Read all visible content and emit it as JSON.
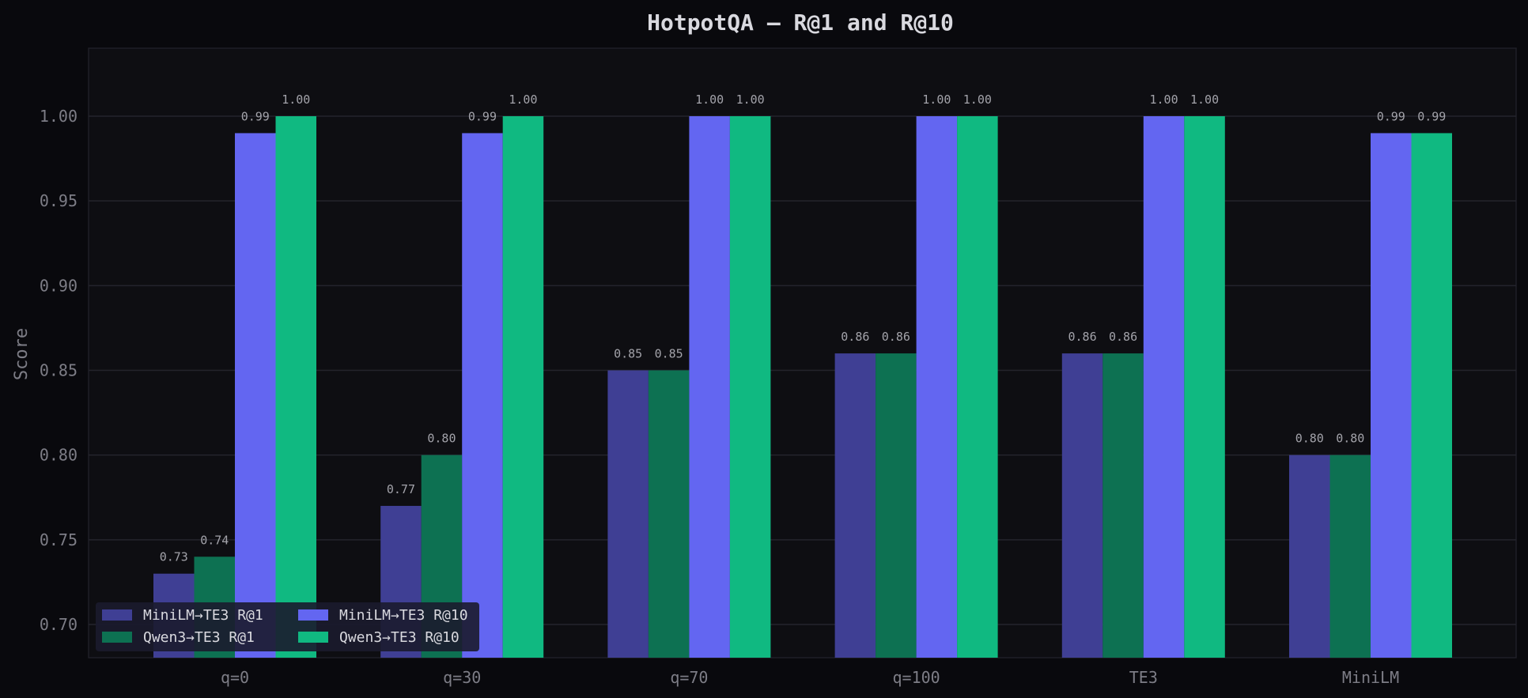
{
  "chart_data": {
    "type": "bar",
    "title": "HotpotQA — R@1 and R@10",
    "xlabel": "",
    "ylabel": "Score",
    "ylim": [
      0.68,
      1.04
    ],
    "yticks": [
      "0.70",
      "0.75",
      "0.80",
      "0.85",
      "0.90",
      "0.95",
      "1.00"
    ],
    "categories": [
      "q=0",
      "q=30",
      "q=70",
      "q=100",
      "TE3",
      "MiniLM"
    ],
    "grid": true,
    "legend_position": "bottom-left",
    "series": [
      {
        "name": "MiniLM→TE3 R@1",
        "color": "#3f3f94",
        "values": [
          0.73,
          0.77,
          0.85,
          0.86,
          0.86,
          0.8
        ],
        "labels": [
          "0.73",
          "0.77",
          "0.85",
          "0.86",
          "0.86",
          "0.80"
        ]
      },
      {
        "name": "Qwen3→TE3 R@1",
        "color": "#0d7152",
        "values": [
          0.74,
          0.8,
          0.85,
          0.86,
          0.86,
          0.8
        ],
        "labels": [
          "0.74",
          "0.80",
          "0.85",
          "0.86",
          "0.86",
          "0.80"
        ]
      },
      {
        "name": "MiniLM→TE3 R@10",
        "color": "#6366f1",
        "values": [
          0.99,
          0.99,
          1.0,
          1.0,
          1.0,
          0.99
        ],
        "labels": [
          "0.99",
          "0.99",
          "1.00",
          "1.00",
          "1.00",
          "0.99"
        ]
      },
      {
        "name": "Qwen3→TE3 R@10",
        "color": "#10b981",
        "values": [
          1.0,
          1.0,
          1.0,
          1.0,
          1.0,
          0.99
        ],
        "labels": [
          "1.00",
          "1.00",
          "1.00",
          "1.00",
          "1.00",
          "0.99"
        ]
      }
    ],
    "colors": {
      "page_background": "#09090d",
      "plot_background": "#0e0e12",
      "grid": "#24242c",
      "legend_background": "#1b1b2e"
    }
  }
}
